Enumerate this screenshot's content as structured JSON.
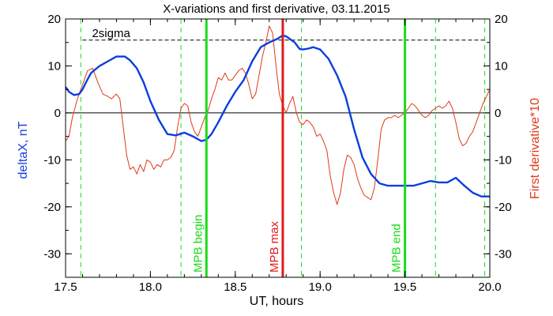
{
  "chart_data": {
    "type": "line",
    "title": "X-variations and first derivative, 03.11.2015",
    "xlabel": "UT, hours",
    "ylabel_left": "deltaX, nT",
    "ylabel_right": "First derivative*10",
    "xlim": [
      17.5,
      20.0
    ],
    "ylim": [
      -35,
      20
    ],
    "x_ticks": [
      17.5,
      18.0,
      18.5,
      19.0,
      19.5,
      20.0
    ],
    "x_tick_labels": [
      "17.5",
      "18.0",
      "18.5",
      "19.0",
      "19.5",
      "20.0"
    ],
    "y_ticks": [
      -30,
      -20,
      -10,
      0,
      10,
      20
    ],
    "y_tick_labels": [
      "-30",
      "-20",
      "-10",
      "0",
      "10",
      "20"
    ],
    "grid": false,
    "colors": {
      "deltaX": "#0a3ee0",
      "derivative": "#e03a1a",
      "mpb_edge": "#19dc19",
      "mpb_max": "#e01a1a",
      "axes": "#000000"
    },
    "sigma_line": {
      "label": "2sigma",
      "y": 15.5
    },
    "zero_line": {
      "y": 0
    },
    "dashed_green_lines": [
      17.59,
      18.18,
      18.89,
      19.68,
      19.97
    ],
    "markers": [
      {
        "label": "MPB begin",
        "x": 18.33,
        "color": "#19dc19"
      },
      {
        "label": "MPB max",
        "x": 18.78,
        "color": "#e01a1a"
      },
      {
        "label": "MPB end",
        "x": 19.5,
        "color": "#19dc19"
      }
    ],
    "series": [
      {
        "name": "deltaX",
        "x": [
          17.5,
          17.52,
          17.55,
          17.58,
          17.6,
          17.62,
          17.65,
          17.7,
          17.75,
          17.8,
          17.85,
          17.88,
          17.92,
          17.96,
          18.0,
          18.05,
          18.1,
          18.15,
          18.2,
          18.25,
          18.3,
          18.33,
          18.36,
          18.4,
          18.45,
          18.5,
          18.55,
          18.6,
          18.65,
          18.7,
          18.75,
          18.78,
          18.8,
          18.82,
          18.85,
          18.88,
          18.9,
          18.93,
          18.96,
          19.0,
          19.05,
          19.1,
          19.15,
          19.2,
          19.25,
          19.3,
          19.35,
          19.4,
          19.45,
          19.5,
          19.55,
          19.6,
          19.65,
          19.7,
          19.75,
          19.8,
          19.85,
          19.9,
          19.95,
          20.0
        ],
        "y": [
          5.5,
          4.5,
          3.8,
          4.0,
          5.0,
          6.5,
          8.5,
          10.0,
          11.0,
          12.0,
          12.0,
          11.2,
          9.5,
          6.5,
          2.5,
          -1.5,
          -4.5,
          -4.8,
          -4.2,
          -5.0,
          -6.0,
          -5.7,
          -4.5,
          -2.0,
          1.5,
          4.5,
          7.0,
          11.0,
          14.0,
          15.0,
          15.8,
          16.5,
          16.3,
          15.8,
          15.0,
          13.6,
          13.5,
          13.7,
          14.0,
          13.5,
          11.5,
          8.0,
          3.5,
          -3.5,
          -9.5,
          -13.0,
          -15.0,
          -15.5,
          -15.5,
          -15.5,
          -15.5,
          -15.0,
          -14.5,
          -14.8,
          -14.8,
          -13.8,
          -15.5,
          -17.0,
          -17.8,
          -17.8
        ]
      },
      {
        "name": "First derivative*10",
        "x": [
          17.5,
          17.52,
          17.54,
          17.57,
          17.6,
          17.63,
          17.66,
          17.69,
          17.72,
          17.75,
          17.77,
          17.8,
          17.82,
          17.84,
          17.86,
          17.88,
          17.9,
          17.92,
          17.94,
          17.96,
          17.98,
          18.0,
          18.02,
          18.04,
          18.06,
          18.08,
          18.1,
          18.12,
          18.14,
          18.16,
          18.18,
          18.2,
          18.22,
          18.24,
          18.26,
          18.28,
          18.3,
          18.32,
          18.34,
          18.36,
          18.38,
          18.4,
          18.42,
          18.44,
          18.46,
          18.48,
          18.5,
          18.52,
          18.54,
          18.56,
          18.58,
          18.6,
          18.62,
          18.64,
          18.66,
          18.68,
          18.7,
          18.72,
          18.74,
          18.76,
          18.78,
          18.8,
          18.82,
          18.84,
          18.86,
          18.88,
          18.9,
          18.92,
          18.94,
          18.96,
          18.98,
          19.0,
          19.02,
          19.04,
          19.06,
          19.08,
          19.1,
          19.12,
          19.14,
          19.16,
          19.18,
          19.2,
          19.22,
          19.24,
          19.26,
          19.28,
          19.3,
          19.32,
          19.34,
          19.36,
          19.38,
          19.4,
          19.42,
          19.44,
          19.46,
          19.48,
          19.5,
          19.52,
          19.54,
          19.56,
          19.58,
          19.6,
          19.62,
          19.64,
          19.66,
          19.68,
          19.7,
          19.72,
          19.74,
          19.76,
          19.78,
          19.8,
          19.82,
          19.84,
          19.86,
          19.88,
          19.9,
          19.92,
          19.94,
          19.96,
          19.98,
          20.0
        ],
        "y": [
          -6.0,
          -5.0,
          -1.0,
          3.0,
          6.0,
          9.0,
          9.5,
          6.5,
          4.0,
          3.5,
          3.0,
          4.0,
          3.0,
          -3.0,
          -9.0,
          -12.0,
          -11.5,
          -13.0,
          -11.0,
          -12.5,
          -10.0,
          -10.5,
          -12.0,
          -11.0,
          -11.5,
          -10.0,
          -10.0,
          -9.5,
          -8.0,
          -3.0,
          1.0,
          2.0,
          1.5,
          -2.0,
          -4.0,
          -5.0,
          -3.0,
          -1.0,
          0.5,
          3.0,
          5.0,
          7.5,
          7.0,
          8.5,
          7.0,
          7.0,
          8.0,
          9.0,
          9.5,
          8.5,
          6.0,
          3.0,
          4.0,
          8.0,
          12.0,
          15.0,
          18.5,
          17.0,
          10.0,
          4.0,
          1.5,
          0.0,
          2.0,
          3.5,
          0.0,
          -2.0,
          -2.5,
          -1.5,
          -2.0,
          -3.0,
          -5.0,
          -4.5,
          -6.0,
          -8.0,
          -13.5,
          -17.0,
          -19.5,
          -17.0,
          -12.0,
          -9.0,
          -9.5,
          -11.0,
          -14.0,
          -16.0,
          -17.5,
          -18.0,
          -18.5,
          -16.0,
          -10.0,
          -3.5,
          -1.5,
          -1.0,
          -1.0,
          -0.5,
          -1.0,
          -0.5,
          0.0,
          1.0,
          2.0,
          1.5,
          0.5,
          -0.5,
          -1.0,
          -0.5,
          0.5,
          1.0,
          1.5,
          1.0,
          1.5,
          2.5,
          1.0,
          -2.0,
          -5.5,
          -7.0,
          -6.5,
          -5.0,
          -4.0,
          -2.0,
          0.0,
          2.0,
          3.5,
          5.0
        ]
      }
    ]
  }
}
